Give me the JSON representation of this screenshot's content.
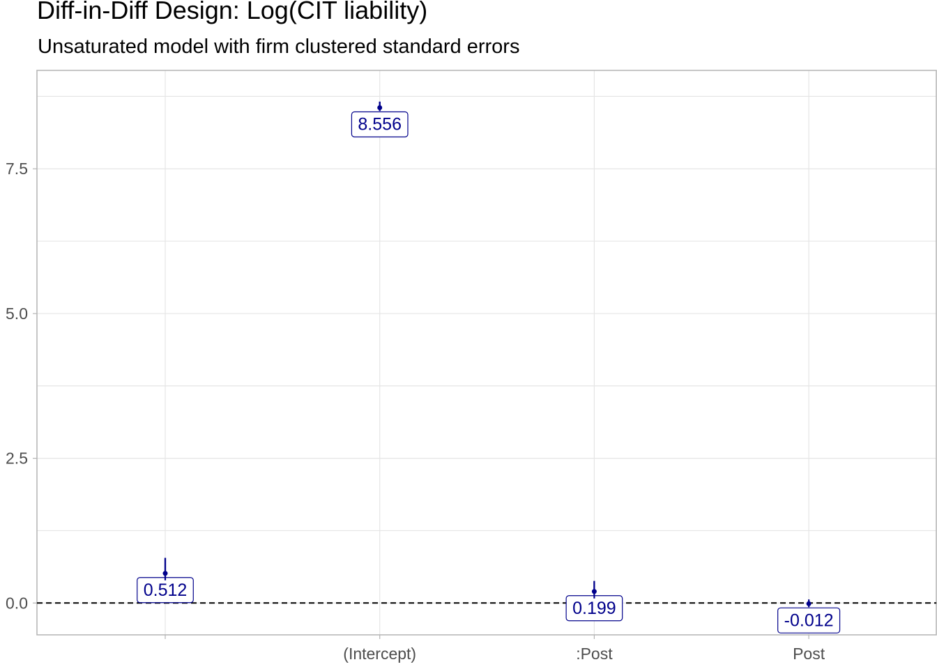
{
  "chart_data": {
    "type": "scatter",
    "title": "Diff-in-Diff Design: Log(CIT liability)",
    "subtitle": "Unsaturated model with firm clustered standard errors",
    "xlabel": "",
    "ylabel": "",
    "categories": [
      "",
      "(Intercept)",
      ":Post",
      "Post"
    ],
    "y_ticks": [
      "0.0",
      "2.5",
      "5.0",
      "7.5"
    ],
    "ylim": [
      -0.55,
      9.2
    ],
    "grid": true,
    "reference_line": 0,
    "points": [
      {
        "term": "",
        "estimate": 0.512,
        "label": "0.512",
        "ci": [
          0.2,
          0.78
        ]
      },
      {
        "term": "(Intercept)",
        "estimate": 8.556,
        "label": "8.556",
        "ci": [
          8.5,
          8.66
        ]
      },
      {
        "term": ":Post",
        "estimate": 0.199,
        "label": "0.199",
        "ci": [
          0.0,
          0.38
        ]
      },
      {
        "term": "Post",
        "estimate": -0.012,
        "label": "-0.012",
        "ci": [
          -0.07,
          0.06
        ]
      }
    ],
    "colors": {
      "point": "#00008B",
      "label_text": "#00008B",
      "grid": "#e5e5e5",
      "axis": "#b3b3b3",
      "reference": "#000000"
    }
  }
}
